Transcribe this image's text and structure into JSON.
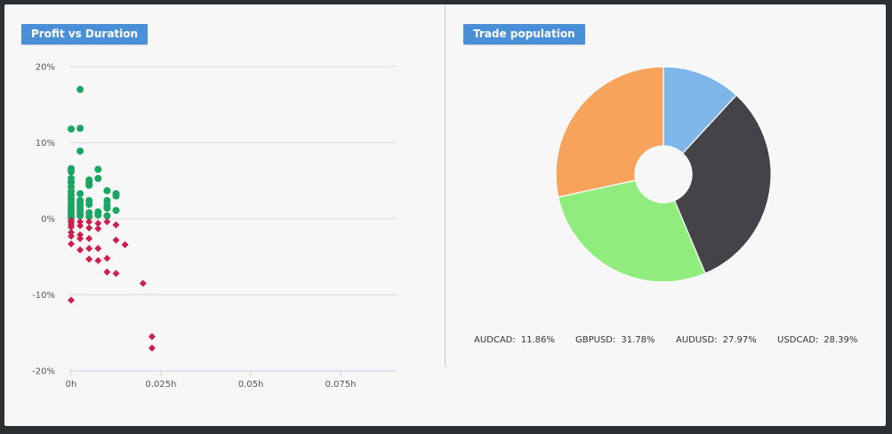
{
  "panels": {
    "left_title": "Profit vs Duration",
    "right_title": "Trade population"
  },
  "colors": {
    "profit": "#1aa562",
    "loss": "#cc1f4b",
    "AUDCAD": "#7eb6ea",
    "GBPUSD": "#434348",
    "AUDUSD": "#90ed7d",
    "USDCAD": "#f7a35c"
  },
  "chart_data": [
    {
      "type": "scatter",
      "title": "Profit vs Duration",
      "xlabel": "",
      "ylabel": "",
      "xlim": [
        0,
        0.09
      ],
      "ylim": [
        -20,
        20
      ],
      "x_ticks": [
        {
          "value": 0,
          "label": "0h"
        },
        {
          "value": 0.025,
          "label": "0.025h"
        },
        {
          "value": 0.05,
          "label": "0.05h"
        },
        {
          "value": 0.075,
          "label": "0.075h"
        }
      ],
      "y_ticks": [
        {
          "value": 20,
          "label": "20%"
        },
        {
          "value": 10,
          "label": "10%"
        },
        {
          "value": 0,
          "label": "0%"
        },
        {
          "value": -10,
          "label": "-10%"
        },
        {
          "value": -20,
          "label": "-20%"
        }
      ],
      "grid": true,
      "series": [
        {
          "marker": "circle",
          "color": "#1aa562",
          "points": [
            [
              0,
              11.8
            ],
            [
              0,
              6.6
            ],
            [
              0,
              6.2
            ],
            [
              0,
              5.3
            ],
            [
              0,
              4.8
            ],
            [
              0,
              4.2
            ],
            [
              0,
              3.6
            ],
            [
              0,
              3.1
            ],
            [
              0,
              2.6
            ],
            [
              0,
              2.1
            ],
            [
              0,
              1.7
            ],
            [
              0,
              1.3
            ],
            [
              0,
              0.9
            ],
            [
              0,
              0.5
            ],
            [
              0,
              0.2
            ],
            [
              0.0025,
              17.0
            ],
            [
              0.0025,
              11.9
            ],
            [
              0.0025,
              8.9
            ],
            [
              0.0025,
              3.3
            ],
            [
              0.0025,
              2.4
            ],
            [
              0.0025,
              2.0
            ],
            [
              0.0025,
              1.6
            ],
            [
              0.0025,
              1.2
            ],
            [
              0.0025,
              0.8
            ],
            [
              0.0025,
              0.4
            ],
            [
              0.005,
              5.1
            ],
            [
              0.005,
              4.8
            ],
            [
              0.005,
              4.4
            ],
            [
              0.005,
              2.4
            ],
            [
              0.005,
              1.9
            ],
            [
              0.005,
              0.8
            ],
            [
              0.005,
              0.3
            ],
            [
              0.0075,
              6.5
            ],
            [
              0.0075,
              5.3
            ],
            [
              0.0075,
              0.9
            ],
            [
              0.0075,
              0.5
            ],
            [
              0.01,
              3.7
            ],
            [
              0.01,
              2.4
            ],
            [
              0.01,
              1.8
            ],
            [
              0.01,
              1.4
            ],
            [
              0.01,
              0.4
            ],
            [
              0.0125,
              3.3
            ],
            [
              0.0125,
              3.0
            ],
            [
              0.0125,
              1.1
            ]
          ]
        },
        {
          "marker": "diamond",
          "color": "#cc1f4b",
          "points": [
            [
              0,
              -0.2
            ],
            [
              0,
              -0.5
            ],
            [
              0,
              -0.8
            ],
            [
              0,
              -1.1
            ],
            [
              0,
              -1.8
            ],
            [
              0,
              -2.3
            ],
            [
              0,
              -3.3
            ],
            [
              0,
              -10.7
            ],
            [
              0.0025,
              -0.4
            ],
            [
              0.0025,
              -0.9
            ],
            [
              0.0025,
              -2.1
            ],
            [
              0.0025,
              -2.6
            ],
            [
              0.0025,
              -4.1
            ],
            [
              0.005,
              -0.4
            ],
            [
              0.005,
              -1.2
            ],
            [
              0.005,
              -2.6
            ],
            [
              0.005,
              -3.9
            ],
            [
              0.005,
              -5.3
            ],
            [
              0.0075,
              -0.6
            ],
            [
              0.0075,
              -1.3
            ],
            [
              0.0075,
              -3.9
            ],
            [
              0.0075,
              -5.5
            ],
            [
              0.01,
              -0.4
            ],
            [
              0.01,
              -5.2
            ],
            [
              0.01,
              -7.0
            ],
            [
              0.0125,
              -0.8
            ],
            [
              0.0125,
              -2.8
            ],
            [
              0.0125,
              -7.2
            ],
            [
              0.015,
              -3.4
            ],
            [
              0.02,
              -8.5
            ],
            [
              0.0225,
              -15.5
            ],
            [
              0.0225,
              -17.0
            ]
          ]
        }
      ]
    },
    {
      "type": "pie",
      "title": "Trade population",
      "donut": true,
      "slices": [
        {
          "label": "AUDCAD:",
          "value": 11.86,
          "value_label": "11.86%",
          "color": "#7eb6ea"
        },
        {
          "label": "GBPUSD:",
          "value": 31.78,
          "value_label": "31.78%",
          "color": "#434348"
        },
        {
          "label": "AUDUSD:",
          "value": 27.97,
          "value_label": "27.97%",
          "color": "#90ed7d"
        },
        {
          "label": "USDCAD:",
          "value": 28.39,
          "value_label": "28.39%",
          "color": "#f7a35c"
        }
      ]
    }
  ]
}
